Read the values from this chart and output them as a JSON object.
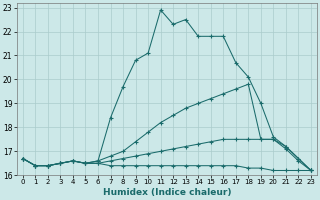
{
  "xlabel": "Humidex (Indice chaleur)",
  "xlim": [
    -0.5,
    23.5
  ],
  "ylim": [
    16.0,
    23.2
  ],
  "yticks": [
    16,
    17,
    18,
    19,
    20,
    21,
    22,
    23
  ],
  "xticks": [
    0,
    1,
    2,
    3,
    4,
    5,
    6,
    7,
    8,
    9,
    10,
    11,
    12,
    13,
    14,
    15,
    16,
    17,
    18,
    19,
    20,
    21,
    22,
    23
  ],
  "bg_color": "#cce8e8",
  "grid_color": "#aacccc",
  "line_color": "#1a6b6b",
  "curves": [
    {
      "x": [
        0,
        1,
        2,
        3,
        4,
        5,
        6,
        7,
        8,
        9,
        10,
        11,
        12,
        13,
        14,
        15,
        16,
        17,
        18,
        19,
        20,
        21,
        22,
        23
      ],
      "y": [
        16.7,
        16.4,
        16.4,
        16.5,
        16.6,
        16.5,
        16.6,
        18.4,
        19.7,
        20.8,
        21.1,
        22.9,
        22.3,
        22.5,
        21.8,
        21.8,
        21.8,
        20.7,
        20.1,
        19.0,
        17.6,
        17.2,
        16.7,
        16.2
      ]
    },
    {
      "x": [
        0,
        1,
        2,
        3,
        4,
        5,
        6,
        7,
        8,
        9,
        10,
        11,
        12,
        13,
        14,
        15,
        16,
        17,
        18,
        19,
        20,
        21,
        22,
        23
      ],
      "y": [
        16.7,
        16.4,
        16.4,
        16.5,
        16.6,
        16.5,
        16.6,
        16.8,
        17.0,
        17.4,
        17.8,
        18.2,
        18.5,
        18.8,
        19.0,
        19.2,
        19.4,
        19.6,
        19.8,
        17.5,
        17.5,
        17.1,
        16.6,
        16.2
      ]
    },
    {
      "x": [
        0,
        1,
        2,
        3,
        4,
        5,
        6,
        7,
        8,
        9,
        10,
        11,
        12,
        13,
        14,
        15,
        16,
        17,
        18,
        19,
        20,
        21,
        22,
        23
      ],
      "y": [
        16.7,
        16.4,
        16.4,
        16.5,
        16.6,
        16.5,
        16.5,
        16.6,
        16.7,
        16.8,
        16.9,
        17.0,
        17.1,
        17.2,
        17.3,
        17.4,
        17.5,
        17.5,
        17.5,
        17.5,
        17.5,
        17.2,
        16.7,
        16.2
      ]
    },
    {
      "x": [
        0,
        1,
        2,
        3,
        4,
        5,
        6,
        7,
        8,
        9,
        10,
        11,
        12,
        13,
        14,
        15,
        16,
        17,
        18,
        19,
        20,
        21,
        22,
        23
      ],
      "y": [
        16.7,
        16.4,
        16.4,
        16.5,
        16.6,
        16.5,
        16.5,
        16.4,
        16.4,
        16.4,
        16.4,
        16.4,
        16.4,
        16.4,
        16.4,
        16.4,
        16.4,
        16.4,
        16.3,
        16.3,
        16.2,
        16.2,
        16.2,
        16.2
      ]
    }
  ]
}
